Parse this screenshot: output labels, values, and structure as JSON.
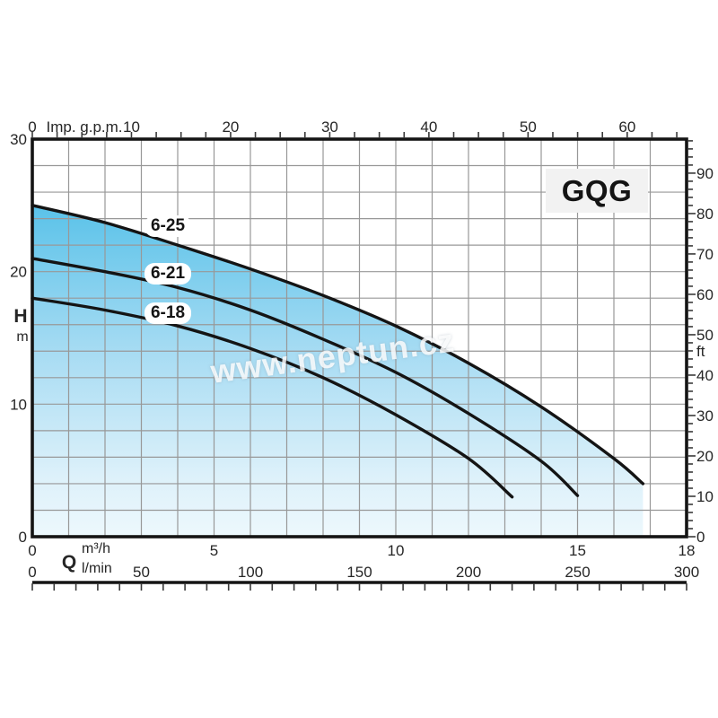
{
  "watermark": {
    "text": "www.neptun.cz"
  },
  "colors": {
    "fill_top": "#5ac2e9",
    "fill_mid": "#a8dcf3",
    "fill_low": "#ddf1fa",
    "fill_bottom": "#edf8fd",
    "grid": "#989898",
    "curve": "#141414",
    "frame": "#141414",
    "tick": "#3a3a3a",
    "text": "#262626",
    "badge_bg": "#f2f2f2",
    "label_bg": "#ffffff"
  },
  "chart_data": {
    "type": "line",
    "title": "GQG",
    "grid": true,
    "legend_position": "none",
    "fill_under_series": "6-25",
    "axes": {
      "top": {
        "unit": "Imp. g.p.m.",
        "tick_labels": [
          0,
          10,
          20,
          30,
          40,
          50,
          60
        ],
        "minor_tick_step": 2.5
      },
      "left": {
        "quantity": "H",
        "unit": "m",
        "tick_labels": [
          0,
          10,
          20,
          30
        ],
        "range": [
          0,
          30
        ],
        "grid_step": 2
      },
      "right": {
        "unit": "ft",
        "tick_labels": [
          0,
          10,
          20,
          30,
          40,
          50,
          60,
          70,
          80,
          90
        ],
        "minor_tick_step": 2
      },
      "bottom_primary": {
        "unit": "m³/h",
        "tick_labels": [
          0,
          5,
          10,
          15,
          18
        ],
        "range": [
          0,
          18
        ],
        "grid_step": 1
      },
      "bottom_secondary": {
        "quantity": "Q",
        "unit": "l/min",
        "tick_labels": [
          0,
          50,
          100,
          150,
          200,
          250,
          300
        ],
        "range": [
          0,
          300
        ],
        "minor_tick_step": 10
      }
    },
    "series": [
      {
        "name": "6-25",
        "points": [
          [
            0,
            25.0
          ],
          [
            2,
            23.7
          ],
          [
            4,
            22.0
          ],
          [
            6,
            20.2
          ],
          [
            8,
            18.2
          ],
          [
            10,
            15.9
          ],
          [
            12,
            13.1
          ],
          [
            14,
            9.8
          ],
          [
            16,
            5.9
          ],
          [
            16.8,
            4.0
          ]
        ]
      },
      {
        "name": "6-21",
        "points": [
          [
            0,
            21.0
          ],
          [
            2,
            20.0
          ],
          [
            4,
            18.8
          ],
          [
            6,
            17.1
          ],
          [
            8,
            14.9
          ],
          [
            10,
            12.4
          ],
          [
            12,
            9.3
          ],
          [
            14,
            5.7
          ],
          [
            15,
            3.1
          ]
        ]
      },
      {
        "name": "6-18",
        "points": [
          [
            0,
            18.0
          ],
          [
            2,
            17.1
          ],
          [
            4,
            15.9
          ],
          [
            6,
            14.2
          ],
          [
            8,
            12.0
          ],
          [
            10,
            9.2
          ],
          [
            12,
            5.9
          ],
          [
            13.2,
            3.0
          ]
        ]
      }
    ]
  }
}
